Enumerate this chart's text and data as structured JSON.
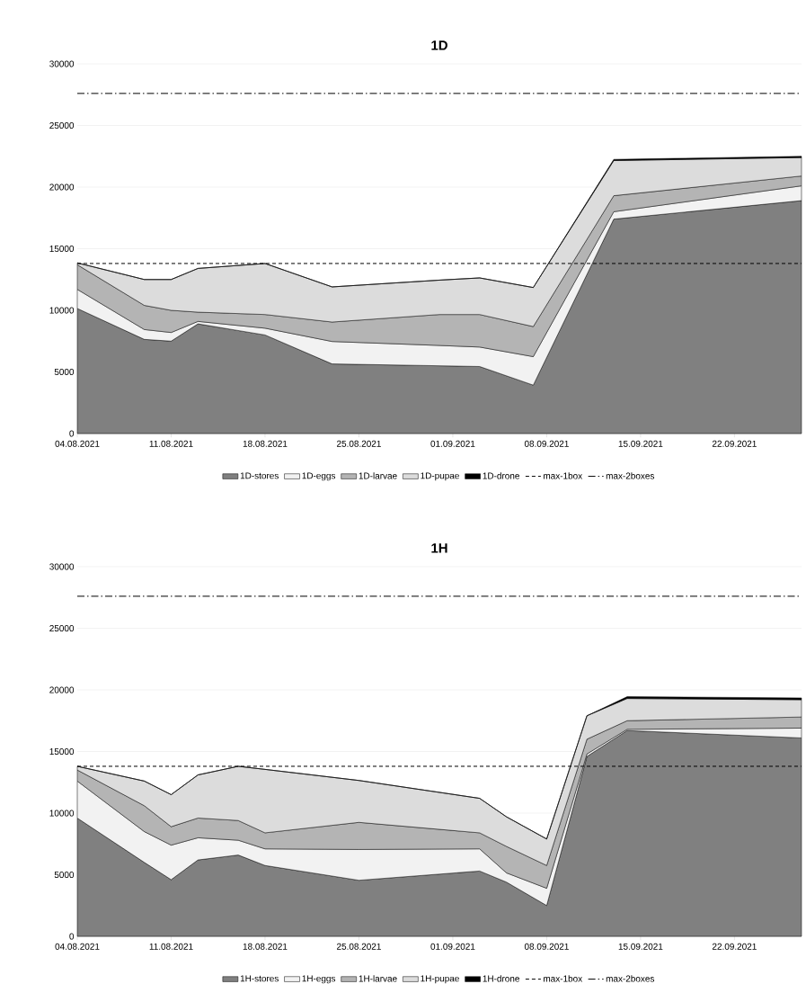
{
  "chart_data": [
    {
      "type": "area",
      "title": "1D",
      "stacked": true,
      "grid": "y",
      "legend": "bottom",
      "x": [
        "2021-08-04",
        "2021-08-09",
        "2021-08-11",
        "2021-08-13",
        "2021-08-18",
        "2021-08-23",
        "2021-08-31",
        "2021-09-03",
        "2021-09-07",
        "2021-09-13",
        "2021-09-27"
      ],
      "series": [
        {
          "name": "1D-stores",
          "color": "#808080",
          "values": [
            10150,
            7640,
            7500,
            8900,
            8000,
            5650,
            5500,
            5440,
            3930,
            17400,
            18900
          ]
        },
        {
          "name": "1D-eggs",
          "color": "#f2f2f2",
          "values": [
            1550,
            800,
            700,
            200,
            550,
            1820,
            1650,
            1580,
            2310,
            600,
            1200
          ]
        },
        {
          "name": "1D-larvae",
          "color": "#b4b4b4",
          "values": [
            2000,
            1960,
            1800,
            750,
            1110,
            1580,
            2510,
            2640,
            2440,
            1300,
            800
          ]
        },
        {
          "name": "1D-pupae",
          "color": "#dcdcdc",
          "values": [
            150,
            2100,
            2500,
            3550,
            4140,
            2850,
            2790,
            2970,
            3170,
            2850,
            1500
          ]
        },
        {
          "name": "1D-drone",
          "color": "#000000",
          "values": [
            0,
            0,
            0,
            0,
            0,
            0,
            0,
            0,
            0,
            100,
            100
          ]
        }
      ],
      "ref_lines": [
        {
          "axis": "y",
          "value": 13800,
          "label": "max-1box",
          "line_style": "dashed",
          "color": "#000000"
        },
        {
          "axis": "y",
          "value": 27600,
          "label": "max-2boxes",
          "line_style": "dashdot",
          "color": "#000000"
        }
      ],
      "xlim": [
        "2021-08-04",
        "2021-09-27"
      ],
      "xticks": [
        {
          "value": "2021-08-04",
          "label": "04.08.2021"
        },
        {
          "value": "2021-08-11",
          "label": "11.08.2021"
        },
        {
          "value": "2021-08-18",
          "label": "18.08.2021"
        },
        {
          "value": "2021-08-25",
          "label": "25.08.2021"
        },
        {
          "value": "2021-09-01",
          "label": "01.09.2021"
        },
        {
          "value": "2021-09-08",
          "label": "08.09.2021"
        },
        {
          "value": "2021-09-15",
          "label": "15.09.2021"
        },
        {
          "value": "2021-09-22",
          "label": "22.09.2021"
        }
      ],
      "ylim": [
        0,
        30000
      ],
      "yticks": [
        0,
        5000,
        10000,
        15000,
        20000,
        25000,
        30000
      ]
    },
    {
      "type": "area",
      "title": "1H",
      "stacked": true,
      "grid": "y",
      "legend": "bottom",
      "x": [
        "2021-08-04",
        "2021-08-09",
        "2021-08-11",
        "2021-08-13",
        "2021-08-16",
        "2021-08-18",
        "2021-08-25",
        "2021-09-03",
        "2021-09-05",
        "2021-09-08",
        "2021-09-11",
        "2021-09-14",
        "2021-09-27"
      ],
      "series": [
        {
          "name": "1H-stores",
          "color": "#808080",
          "values": [
            9600,
            6000,
            4600,
            6200,
            6600,
            5750,
            4550,
            5300,
            4400,
            2500,
            14600,
            16700,
            16100
          ]
        },
        {
          "name": "1H-eggs",
          "color": "#f2f2f2",
          "values": [
            3000,
            2500,
            2800,
            1800,
            1200,
            1350,
            2500,
            1800,
            750,
            1400,
            200,
            100,
            800
          ]
        },
        {
          "name": "1H-larvae",
          "color": "#b4b4b4",
          "values": [
            900,
            2100,
            1500,
            1600,
            1600,
            1300,
            2200,
            1300,
            2150,
            1850,
            1200,
            700,
            900
          ]
        },
        {
          "name": "1H-pupae",
          "color": "#dcdcdc",
          "values": [
            300,
            2000,
            2600,
            3500,
            4400,
            5150,
            3400,
            2800,
            2400,
            2150,
            1900,
            1800,
            1400
          ]
        },
        {
          "name": "1H-drone",
          "color": "#000000",
          "values": [
            0,
            0,
            0,
            0,
            0,
            0,
            0,
            0,
            0,
            0,
            0,
            150,
            150
          ]
        }
      ],
      "ref_lines": [
        {
          "axis": "y",
          "value": 13800,
          "label": "max-1box",
          "line_style": "dashed",
          "color": "#000000"
        },
        {
          "axis": "y",
          "value": 27600,
          "label": "max-2boxes",
          "line_style": "dashdot",
          "color": "#000000"
        }
      ],
      "xlim": [
        "2021-08-04",
        "2021-09-27"
      ],
      "xticks": [
        {
          "value": "2021-08-04",
          "label": "04.08.2021"
        },
        {
          "value": "2021-08-11",
          "label": "11.08.2021"
        },
        {
          "value": "2021-08-18",
          "label": "18.08.2021"
        },
        {
          "value": "2021-08-25",
          "label": "25.08.2021"
        },
        {
          "value": "2021-09-01",
          "label": "01.09.2021"
        },
        {
          "value": "2021-09-08",
          "label": "08.09.2021"
        },
        {
          "value": "2021-09-15",
          "label": "15.09.2021"
        },
        {
          "value": "2021-09-22",
          "label": "22.09.2021"
        }
      ],
      "ylim": [
        0,
        30000
      ],
      "yticks": [
        0,
        5000,
        10000,
        15000,
        20000,
        25000,
        30000
      ]
    }
  ]
}
